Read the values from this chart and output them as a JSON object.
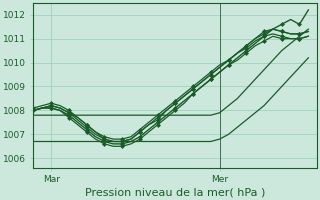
{
  "xlabel": "Pression niveau de la mer( hPa )",
  "bg_color": "#cce8dc",
  "grid_color": "#99ccb8",
  "line_color": "#1a5c28",
  "yticks": [
    1006,
    1007,
    1008,
    1009,
    1010,
    1011,
    1012
  ],
  "ylim": [
    1005.6,
    1012.5
  ],
  "xlim": [
    0,
    32
  ],
  "xtick_labels": [
    "Mar",
    "Mer"
  ],
  "xtick_positions": [
    2,
    21
  ],
  "vline_x": 21,
  "xlabel_fontsize": 8,
  "tick_fontsize": 6.5,
  "lw": 0.9,
  "series": [
    {
      "y": [
        1007.8,
        1007.8,
        1007.8,
        1007.8,
        1007.8,
        1007.8,
        1007.8,
        1007.8,
        1007.8,
        1007.8,
        1007.8,
        1007.8,
        1007.8,
        1007.8,
        1007.8,
        1007.8,
        1007.8,
        1007.8,
        1007.8,
        1007.8,
        1007.8,
        1007.9,
        1008.2,
        1008.5,
        1008.9,
        1009.3,
        1009.7,
        1010.1,
        1010.5,
        1010.8,
        1011.1,
        1011.4
      ],
      "marker": null,
      "lw": 0.9
    },
    {
      "y": [
        1006.7,
        1006.7,
        1006.7,
        1006.7,
        1006.7,
        1006.7,
        1006.7,
        1006.7,
        1006.7,
        1006.7,
        1006.7,
        1006.7,
        1006.7,
        1006.7,
        1006.7,
        1006.7,
        1006.7,
        1006.7,
        1006.7,
        1006.7,
        1006.7,
        1006.8,
        1007.0,
        1007.3,
        1007.6,
        1007.9,
        1008.2,
        1008.6,
        1009.0,
        1009.4,
        1009.8,
        1010.2
      ],
      "marker": null,
      "lw": 0.9
    },
    {
      "y": [
        1008.0,
        1008.1,
        1008.1,
        1008.0,
        1007.8,
        1007.5,
        1007.2,
        1006.9,
        1006.7,
        1006.6,
        1006.6,
        1006.7,
        1006.9,
        1007.2,
        1007.5,
        1007.8,
        1008.1,
        1008.4,
        1008.7,
        1009.0,
        1009.3,
        1009.6,
        1009.9,
        1010.2,
        1010.5,
        1010.8,
        1011.1,
        1011.4,
        1011.6,
        1011.8,
        1011.6,
        1012.2
      ],
      "marker": "D",
      "lw": 1.0
    },
    {
      "y": [
        1008.0,
        1008.1,
        1008.2,
        1008.1,
        1007.9,
        1007.6,
        1007.3,
        1007.0,
        1006.8,
        1006.7,
        1006.7,
        1006.8,
        1007.1,
        1007.4,
        1007.6,
        1008.0,
        1008.3,
        1008.6,
        1008.9,
        1009.2,
        1009.5,
        1009.8,
        1010.1,
        1010.4,
        1010.7,
        1011.0,
        1011.3,
        1011.4,
        1011.3,
        1011.2,
        1011.2,
        1011.3
      ],
      "marker": "D",
      "lw": 0.9
    },
    {
      "y": [
        1008.1,
        1008.2,
        1008.3,
        1008.2,
        1008.0,
        1007.7,
        1007.4,
        1007.1,
        1006.9,
        1006.8,
        1006.8,
        1006.9,
        1007.2,
        1007.5,
        1007.8,
        1008.1,
        1008.4,
        1008.7,
        1009.0,
        1009.3,
        1009.6,
        1009.9,
        1010.1,
        1010.4,
        1010.7,
        1011.0,
        1011.2,
        1011.4,
        1011.3,
        1011.2,
        1011.2,
        1011.3
      ],
      "marker": "D",
      "lw": 0.9
    },
    {
      "y": [
        1008.0,
        1008.1,
        1008.2,
        1008.1,
        1007.9,
        1007.7,
        1007.4,
        1007.1,
        1006.8,
        1006.7,
        1006.7,
        1006.8,
        1007.1,
        1007.4,
        1007.7,
        1008.0,
        1008.3,
        1008.6,
        1008.9,
        1009.2,
        1009.5,
        1009.8,
        1010.1,
        1010.4,
        1010.6,
        1010.9,
        1011.1,
        1011.2,
        1011.1,
        1011.0,
        1011.0,
        1011.1
      ],
      "marker": "D",
      "lw": 0.9
    },
    {
      "y": [
        1008.0,
        1008.1,
        1008.1,
        1008.0,
        1007.7,
        1007.4,
        1007.1,
        1006.8,
        1006.6,
        1006.5,
        1006.5,
        1006.6,
        1006.8,
        1007.1,
        1007.4,
        1007.7,
        1008.0,
        1008.3,
        1008.7,
        1009.0,
        1009.3,
        1009.6,
        1009.9,
        1010.1,
        1010.4,
        1010.7,
        1010.9,
        1011.1,
        1011.0,
        1011.0,
        1011.0,
        1011.1
      ],
      "marker": "D",
      "lw": 0.9
    }
  ]
}
